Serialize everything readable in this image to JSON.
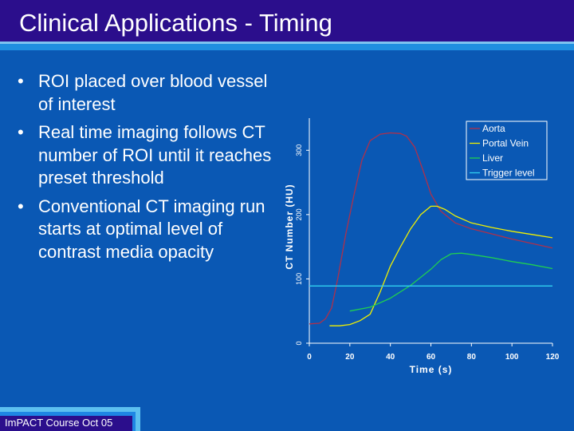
{
  "slide": {
    "title": "Clinical Applications - Timing",
    "footer": "ImPACT Course Oct 05"
  },
  "bullets": [
    "ROI placed over blood vessel of interest",
    "Real time imaging follows CT number of ROI until it reaches preset threshold",
    "Conventional CT imaging run starts at optimal level of contrast media opacity"
  ],
  "bullet_glyph": "•",
  "colors": {
    "background": "#0a58b4",
    "title_bar": "#2b0e8c",
    "aorta": "#b0304a",
    "portal_vein": "#f0f000",
    "liver": "#20d050",
    "trigger": "#30d0f0"
  },
  "chart_data": {
    "type": "line",
    "xlabel": "Time (s)",
    "ylabel": "CT Number (HU)",
    "xlim": [
      0,
      120
    ],
    "ylim": [
      0,
      350
    ],
    "xticks": [
      "0",
      "20",
      "40",
      "60",
      "80",
      "100",
      "120"
    ],
    "yticks": [
      "0",
      "100",
      "200",
      "300"
    ],
    "legend_position": "top-right",
    "series": [
      {
        "name": "Aorta",
        "x": [
          0,
          5,
          8,
          11,
          14,
          18,
          22,
          26,
          30,
          35,
          40,
          45,
          48,
          52,
          56,
          60,
          65,
          72,
          80,
          90,
          100,
          110,
          120
        ],
        "y": [
          30,
          31,
          38,
          55,
          100,
          170,
          230,
          285,
          315,
          325,
          327,
          326,
          322,
          305,
          270,
          232,
          205,
          187,
          178,
          170,
          162,
          155,
          148
        ]
      },
      {
        "name": "Portal Vein",
        "x": [
          10,
          15,
          20,
          25,
          30,
          35,
          40,
          45,
          50,
          55,
          60,
          63,
          67,
          72,
          80,
          90,
          100,
          110,
          120
        ],
        "y": [
          27,
          27,
          29,
          35,
          45,
          80,
          120,
          150,
          178,
          200,
          213,
          213,
          208,
          198,
          187,
          180,
          174,
          169,
          164
        ]
      },
      {
        "name": "Liver",
        "x": [
          20,
          30,
          40,
          50,
          60,
          65,
          70,
          75,
          80,
          90,
          100,
          110,
          120
        ],
        "y": [
          50,
          56,
          70,
          90,
          115,
          130,
          139,
          140,
          138,
          133,
          127,
          122,
          116
        ]
      },
      {
        "name": "Trigger level",
        "x": [
          0,
          120
        ],
        "y": [
          89,
          89
        ]
      }
    ]
  }
}
